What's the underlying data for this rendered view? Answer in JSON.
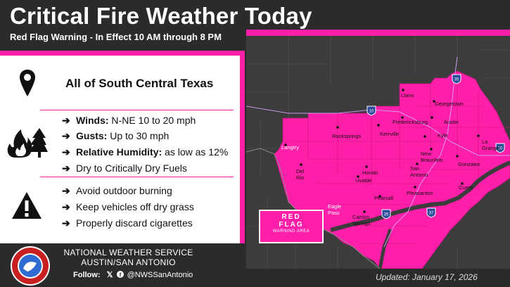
{
  "header": {
    "title": "Critical Fire Weather Today",
    "subtitle": "Red Flag Warning - In Effect 10 AM through 8 PM"
  },
  "location": {
    "icon": "map-pin-icon",
    "text": "All of South Central Texas"
  },
  "conditions": {
    "icon": "fire-tree-icon",
    "items": [
      {
        "label": "Winds:",
        "value": " N-NE 10 to 20 mph"
      },
      {
        "label": "Gusts:",
        "value": " Up to 30 mph"
      },
      {
        "label": "Relative Humidity:",
        "value": " as low as 12%"
      },
      {
        "label": "",
        "value": "Dry to Critically Dry Fuels"
      }
    ]
  },
  "actions": {
    "icon": "warning-triangle-icon",
    "items": [
      "Avoid outdoor burning",
      "Keep vehicles off dry grass",
      "Properly discard cigarettes"
    ]
  },
  "map": {
    "legend": {
      "line1": "RED",
      "line2": "FLAG",
      "line3": "WARNING AREA"
    },
    "highways": [
      "35",
      "10",
      "35",
      "37",
      "10"
    ],
    "cities": [
      "Llano",
      "Georgetown",
      "Fredericksburg",
      "Austin",
      "Kerrville",
      "Rocksprings",
      "Kyle",
      "La Grange",
      "Langtry",
      "New Braunfels",
      "Gonzales",
      "San Antonio",
      "Del Rio",
      "Hondo",
      "Uvalde",
      "Pleasanton",
      "Cuero",
      "Pearsall",
      "Eagle Pass",
      "Carrizo Springs"
    ]
  },
  "footer": {
    "org_line1": "NATIONAL WEATHER SERVICE",
    "org_line2": "AUSTIN/SAN ANTONIO",
    "follow_label": "Follow:",
    "handle": "@NWSSanAntonio",
    "updated": "Updated: January 17, 2026"
  },
  "colors": {
    "accent": "#ff1fa8",
    "background": "#2b2b2b"
  }
}
